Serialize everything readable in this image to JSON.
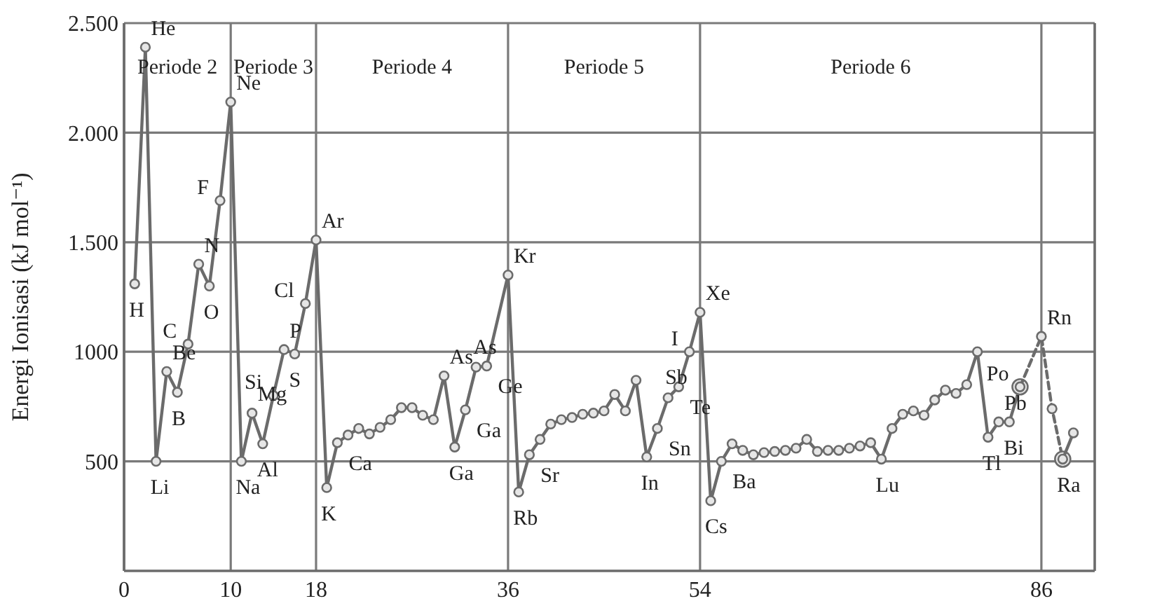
{
  "chart_data": {
    "type": "line",
    "ylabel": "Energi Ionisasi (kJ mol⁻¹)",
    "xlim": [
      0,
      91
    ],
    "ylim": [
      0,
      2500
    ],
    "xticks": [
      0,
      10,
      18,
      36,
      54,
      86
    ],
    "yticks": [
      {
        "value": 500,
        "label": "500"
      },
      {
        "value": 1000,
        "label": "1000"
      },
      {
        "value": 1500,
        "label": "1.500"
      },
      {
        "value": 2000,
        "label": "2.000"
      },
      {
        "value": 2500,
        "label": "2.500"
      }
    ],
    "grid": true,
    "marker": "circle",
    "series": [
      {
        "color": "#6b6b6b",
        "line_style": "solid",
        "x": [
          1,
          2,
          3,
          4,
          5,
          6,
          7,
          8,
          9,
          10,
          11,
          12,
          13,
          14,
          15,
          16,
          17,
          18,
          19,
          20,
          21,
          22,
          23,
          24,
          25,
          26,
          27,
          28,
          29,
          30,
          31,
          32,
          33,
          34,
          36,
          37,
          38,
          39,
          40,
          41,
          42,
          43,
          44,
          45,
          46,
          47,
          48,
          49,
          50,
          51,
          52,
          53,
          54,
          55,
          56,
          57,
          58,
          59,
          60,
          61,
          62,
          63,
          64,
          65,
          66,
          67,
          68,
          69,
          70,
          71,
          72,
          73,
          74,
          75,
          76,
          77,
          78,
          79,
          80,
          81,
          82,
          83,
          84
        ],
        "values": [
          1310,
          2390,
          500,
          910,
          815,
          1035,
          1400,
          1300,
          1690,
          2140,
          500,
          720,
          580,
          800,
          1010,
          990,
          1220,
          1510,
          380,
          585,
          620,
          650,
          625,
          655,
          690,
          745,
          745,
          710,
          690,
          890,
          565,
          735,
          930,
          935,
          1350,
          360,
          530,
          600,
          670,
          690,
          700,
          715,
          720,
          730,
          805,
          730,
          870,
          520,
          650,
          790,
          840,
          1000,
          1180,
          320,
          500,
          580,
          550,
          530,
          540,
          545,
          550,
          560,
          600,
          545,
          550,
          550,
          560,
          570,
          585,
          510,
          650,
          715,
          730,
          710,
          780,
          825,
          810,
          850,
          1000,
          610,
          680,
          680,
          840
        ]
      },
      {
        "color": "#6b6b6b",
        "line_style": "dashed",
        "x": [
          84,
          86,
          87,
          88
        ],
        "values": [
          840,
          1070,
          740,
          510
        ]
      },
      {
        "color": "#6b6b6b",
        "line_style": "solid",
        "x": [
          88,
          89
        ],
        "values": [
          510,
          630
        ]
      }
    ],
    "annotations": [
      "Periode 2",
      "Periode 3",
      "Periode 4",
      "Periode 5",
      "Periode 6",
      {
        "text": "H",
        "x": 1,
        "y": 1310
      },
      {
        "text": "He",
        "x": 2,
        "y": 2390
      },
      {
        "text": "Li",
        "x": 3,
        "y": 500
      },
      {
        "text": "Be",
        "x": 4,
        "y": 910
      },
      {
        "text": "B",
        "x": 5,
        "y": 815
      },
      {
        "text": "C",
        "x": 6,
        "y": 1035
      },
      {
        "text": "N",
        "x": 7,
        "y": 1400
      },
      {
        "text": "O",
        "x": 8,
        "y": 1300
      },
      {
        "text": "F",
        "x": 9,
        "y": 1690
      },
      {
        "text": "Ne",
        "x": 10,
        "y": 2140
      },
      {
        "text": "Na",
        "x": 11,
        "y": 500
      },
      {
        "text": "Mg",
        "x": 12,
        "y": 720
      },
      {
        "text": "Al",
        "x": 13,
        "y": 580
      },
      {
        "text": "Si",
        "x": 14,
        "y": 800
      },
      {
        "text": "P",
        "x": 15,
        "y": 1010
      },
      {
        "text": "S",
        "x": 16,
        "y": 990
      },
      {
        "text": "Cl",
        "x": 17,
        "y": 1220
      },
      {
        "text": "Ar",
        "x": 18,
        "y": 1510
      },
      {
        "text": "K",
        "x": 19,
        "y": 380
      },
      {
        "text": "Ca",
        "x": 20,
        "y": 585
      },
      {
        "text": "As",
        "x": 30,
        "y": 890
      },
      {
        "text": "Ga",
        "x": 31,
        "y": 565
      },
      {
        "text": "As",
        "x": 33,
        "y": 930
      },
      {
        "text": "Ge",
        "x": 34,
        "y": 935
      },
      {
        "text": "Ga",
        "x": 32,
        "y": 735
      },
      {
        "text": "Kr",
        "x": 36,
        "y": 1350
      },
      {
        "text": "Rb",
        "x": 37,
        "y": 360
      },
      {
        "text": "Sr",
        "x": 38,
        "y": 530
      },
      {
        "text": "In",
        "x": 49,
        "y": 520
      },
      {
        "text": "Sb",
        "x": 51,
        "y": 790
      },
      {
        "text": "Sn",
        "x": 50,
        "y": 650
      },
      {
        "text": "Te",
        "x": 52,
        "y": 840
      },
      {
        "text": "I",
        "x": 53,
        "y": 1000
      },
      {
        "text": "Xe",
        "x": 54,
        "y": 1180
      },
      {
        "text": "Cs",
        "x": 55,
        "y": 320
      },
      {
        "text": "Ba",
        "x": 56,
        "y": 500
      },
      {
        "text": "Lu",
        "x": 71,
        "y": 510
      },
      {
        "text": "Tl",
        "x": 81,
        "y": 610
      },
      {
        "text": "Pb",
        "x": 82,
        "y": 680
      },
      {
        "text": "Bi",
        "x": 83,
        "y": 680
      },
      {
        "text": "Po",
        "x": 84,
        "y": 840
      },
      {
        "text": "Rn",
        "x": 86,
        "y": 1070
      },
      {
        "text": "Ra",
        "x": 88,
        "y": 510
      }
    ]
  }
}
